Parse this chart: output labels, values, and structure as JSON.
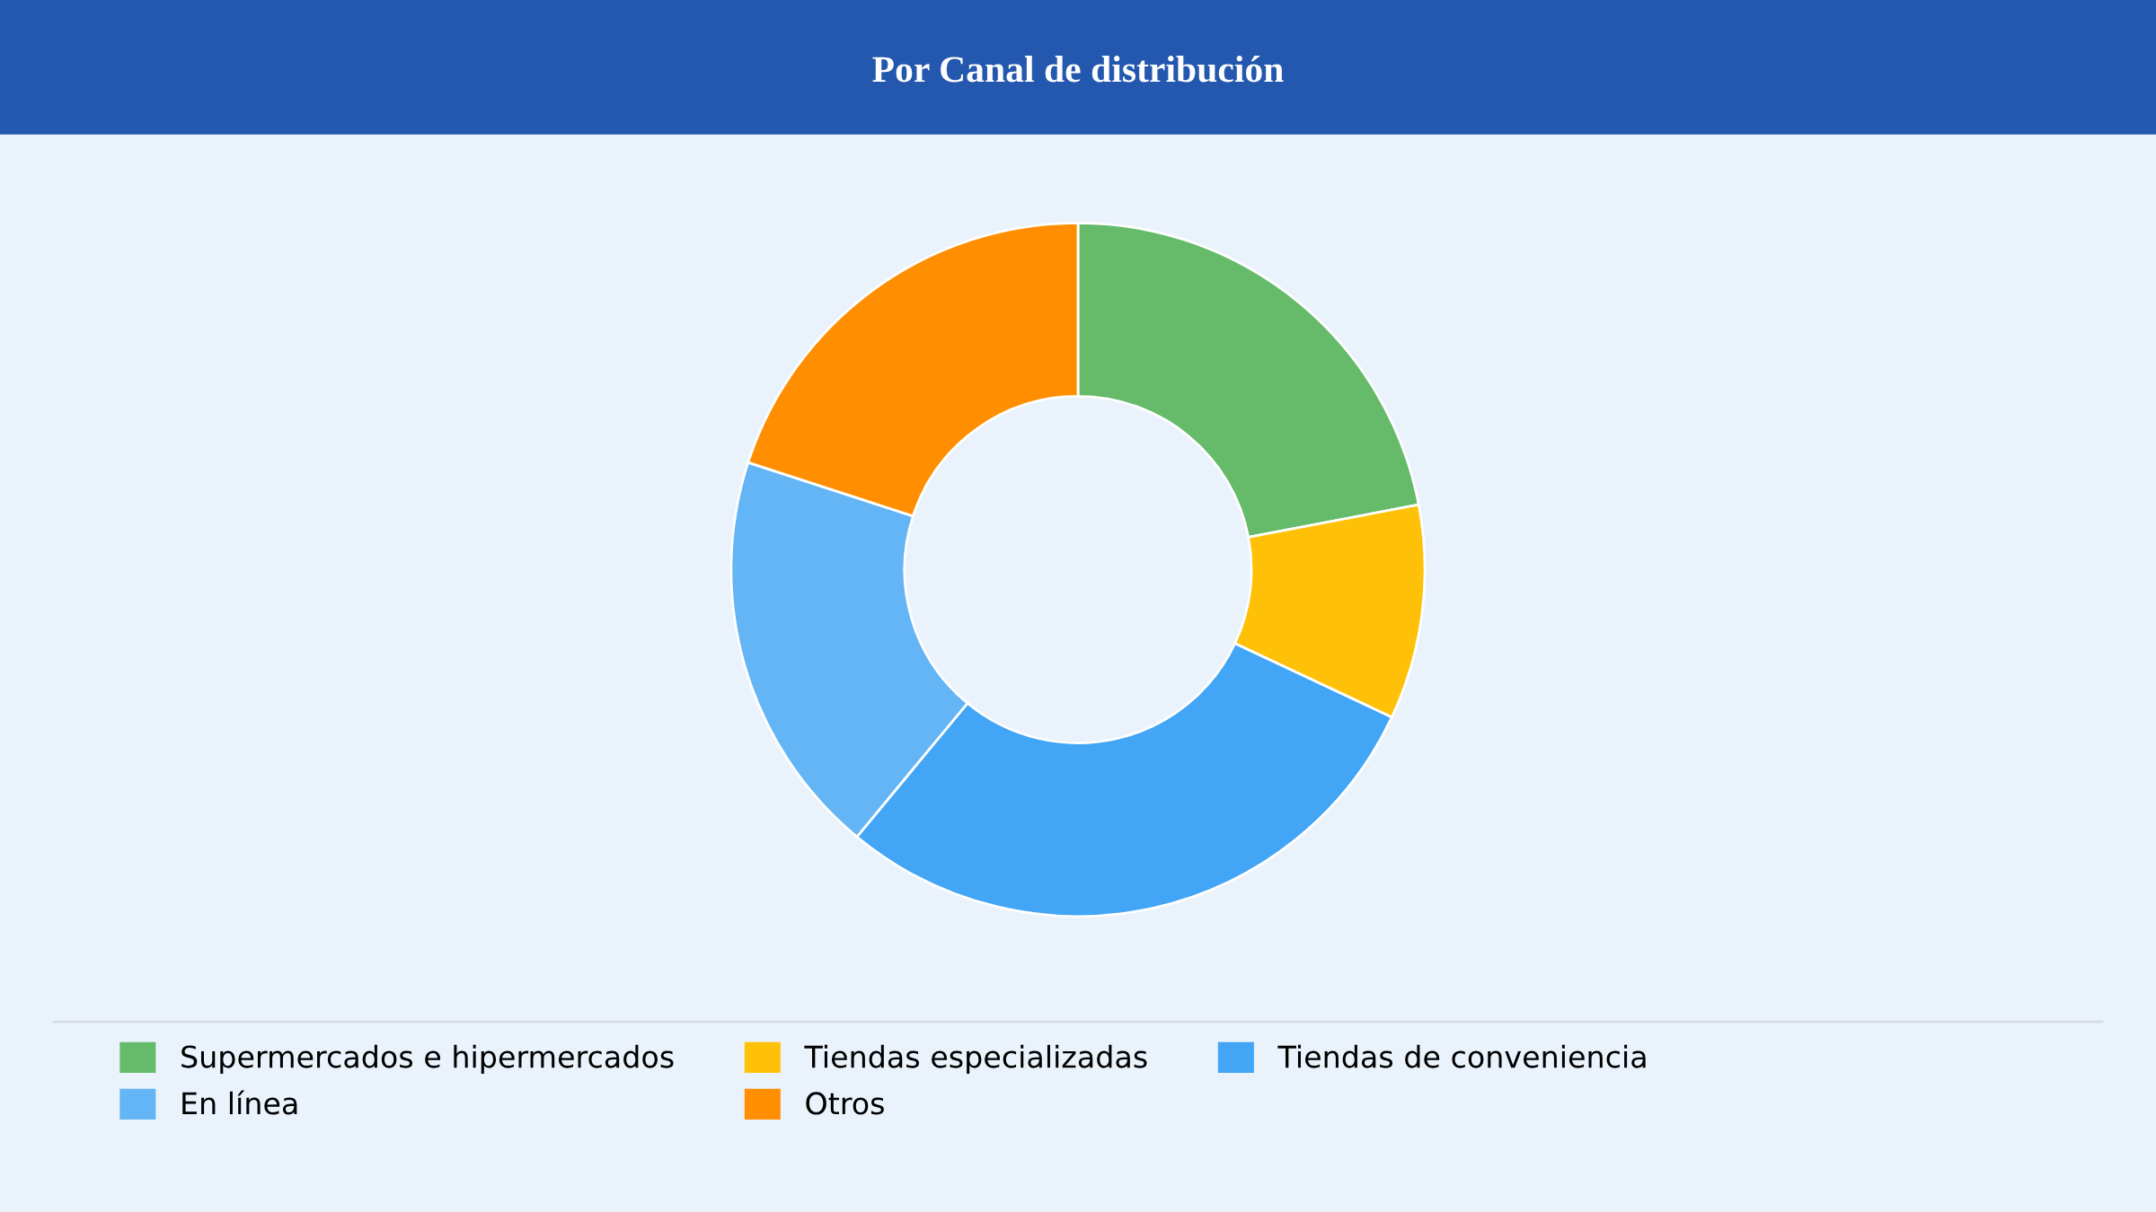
{
  "chart_data": {
    "type": "donut",
    "title": "Por Canal de distribución",
    "categories": [
      "Supermercados e hipermercados",
      "Tiendas especializadas",
      "Tiendas de conveniencia",
      "En línea",
      "Otros"
    ],
    "values": [
      22,
      10,
      29,
      19,
      20
    ],
    "colors": [
      "#66bb6a",
      "#ffc107",
      "#42a5f5",
      "#64b5f6",
      "#ff8f00"
    ],
    "legend": "bottom"
  }
}
